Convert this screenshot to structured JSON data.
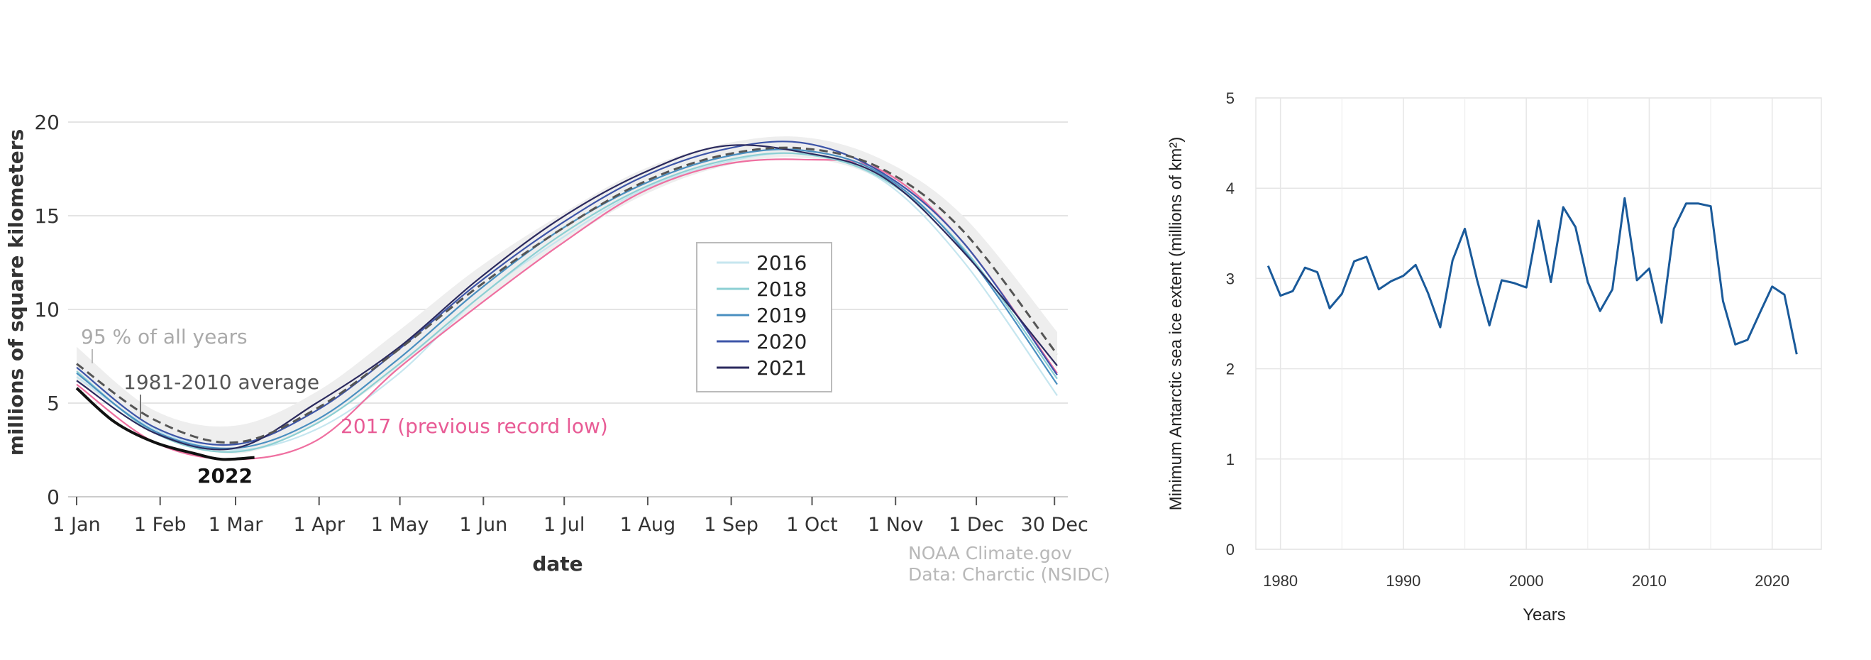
{
  "chart_data": [
    {
      "type": "line",
      "xlabel": "date",
      "ylabel": "millions of square kilometers",
      "ylim": [
        0,
        20
      ],
      "yticks": [
        0,
        5,
        10,
        15,
        20
      ],
      "xlim": [
        1,
        365
      ],
      "xticks": [
        {
          "day": 1,
          "label": "1 Jan"
        },
        {
          "day": 32,
          "label": "1 Feb"
        },
        {
          "day": 60,
          "label": "1 Mar"
        },
        {
          "day": 91,
          "label": "1 Apr"
        },
        {
          "day": 121,
          "label": "1 May"
        },
        {
          "day": 152,
          "label": "1 Jun"
        },
        {
          "day": 182,
          "label": "1 Jul"
        },
        {
          "day": 213,
          "label": "1 Aug"
        },
        {
          "day": 244,
          "label": "1 Sep"
        },
        {
          "day": 274,
          "label": "1 Oct"
        },
        {
          "day": 305,
          "label": "1 Nov"
        },
        {
          "day": 335,
          "label": "1 Dec"
        },
        {
          "day": 364,
          "label": "30 Dec"
        }
      ],
      "grid": true,
      "legend_position": "center-right",
      "band": {
        "label": "95 % of all years",
        "color": "#eeeeee",
        "x": [
          1,
          30,
          60,
          90,
          120,
          150,
          180,
          210,
          240,
          270,
          300,
          330,
          365
        ],
        "lower": [
          6.2,
          3.6,
          2.3,
          3.9,
          6.8,
          10.2,
          13.4,
          16.0,
          17.6,
          18.1,
          16.9,
          13.4,
          6.8
        ],
        "upper": [
          8.0,
          4.6,
          3.8,
          5.6,
          8.8,
          12.2,
          15.0,
          17.4,
          18.8,
          19.2,
          18.0,
          15.0,
          8.8
        ]
      },
      "average": {
        "label": "1981-2010 average",
        "color": "#555555",
        "x": [
          1,
          30,
          60,
          90,
          120,
          150,
          180,
          210,
          240,
          270,
          300,
          330,
          365
        ],
        "y": [
          7.1,
          4.1,
          2.9,
          4.7,
          7.8,
          11.2,
          14.2,
          16.7,
          18.2,
          18.6,
          17.5,
          14.2,
          7.6
        ]
      },
      "series": [
        {
          "name": "2016",
          "color": "#c6e6ef",
          "x": [
            1,
            30,
            60,
            90,
            120,
            150,
            180,
            210,
            240,
            270,
            300,
            330,
            365
          ],
          "y": [
            6.4,
            3.6,
            2.5,
            3.6,
            6.5,
            10.6,
            13.7,
            16.3,
            17.8,
            18.3,
            16.9,
            12.6,
            5.4
          ]
        },
        {
          "name": "2017 (previous record low)",
          "color": "#ef6fa0",
          "x": [
            1,
            30,
            60,
            90,
            120,
            150,
            180,
            210,
            240,
            270,
            300,
            330,
            365
          ],
          "y": [
            6.0,
            2.9,
            2.0,
            3.0,
            6.8,
            10.2,
            13.4,
            16.2,
            17.7,
            18.0,
            17.4,
            13.6,
            6.6
          ]
        },
        {
          "name": "2018",
          "color": "#8ccfd3",
          "x": [
            1,
            30,
            60,
            90,
            120,
            150,
            180,
            210,
            240,
            270,
            300,
            330,
            365
          ],
          "y": [
            6.7,
            3.4,
            2.4,
            3.9,
            7.0,
            10.6,
            13.9,
            16.4,
            17.9,
            18.3,
            17.0,
            13.3,
            6.3
          ]
        },
        {
          "name": "2019",
          "color": "#4a8fc0",
          "x": [
            1,
            30,
            60,
            90,
            120,
            150,
            180,
            210,
            240,
            270,
            300,
            330,
            365
          ],
          "y": [
            6.6,
            3.5,
            2.6,
            4.1,
            7.3,
            11.0,
            14.2,
            16.6,
            18.1,
            18.5,
            17.2,
            13.2,
            6.0
          ]
        },
        {
          "name": "2020",
          "color": "#3d55a8",
          "x": [
            1,
            30,
            60,
            90,
            120,
            150,
            180,
            210,
            240,
            270,
            300,
            330,
            365
          ],
          "y": [
            6.9,
            3.7,
            2.8,
            4.6,
            7.8,
            11.4,
            14.5,
            17.0,
            18.5,
            18.9,
            17.3,
            13.6,
            6.5
          ]
        },
        {
          "name": "2021",
          "color": "#2b2a5e",
          "x": [
            1,
            30,
            60,
            90,
            120,
            150,
            180,
            210,
            240,
            270,
            300,
            330,
            365
          ],
          "y": [
            6.2,
            3.4,
            2.6,
            5.0,
            7.9,
            11.6,
            14.8,
            17.2,
            18.7,
            18.4,
            17.1,
            13.1,
            7.0
          ]
        },
        {
          "name": "2022",
          "color": "#111111",
          "x": [
            1,
            15,
            30,
            45,
            55,
            67
          ],
          "y": [
            5.8,
            4.0,
            2.9,
            2.3,
            2.0,
            2.1
          ]
        }
      ],
      "legend": [
        "2016",
        "2018",
        "2019",
        "2020",
        "2021"
      ],
      "annotations": {
        "band_label": "95 % of all years",
        "average_label": "1981-2010 average",
        "record_label": "2017 (previous record low)",
        "current_label": "2022"
      },
      "credit": [
        "NOAA Climate.gov",
        "Data: Charctic (NSIDC)"
      ]
    },
    {
      "type": "line",
      "xlabel": "Years",
      "ylabel": "Minimum Antarctic sea ice extent (millions of km²)",
      "ylim": [
        0,
        5
      ],
      "yticks": [
        0,
        1,
        2,
        3,
        4,
        5
      ],
      "xlim": [
        1978,
        2024
      ],
      "xticks": [
        1980,
        1990,
        2000,
        2010,
        2020
      ],
      "grid": true,
      "series": [
        {
          "color": "#1a5a9a",
          "x": [
            1979,
            1980,
            1981,
            1982,
            1983,
            1984,
            1985,
            1986,
            1987,
            1988,
            1989,
            1990,
            1991,
            1992,
            1993,
            1994,
            1995,
            1996,
            1997,
            1998,
            1999,
            2000,
            2001,
            2002,
            2003,
            2004,
            2005,
            2006,
            2007,
            2008,
            2009,
            2010,
            2011,
            2012,
            2013,
            2014,
            2015,
            2016,
            2017,
            2018,
            2019,
            2020,
            2021,
            2022
          ],
          "y": [
            3.14,
            2.81,
            2.86,
            3.12,
            3.07,
            2.67,
            2.83,
            3.19,
            3.24,
            2.88,
            2.97,
            3.03,
            3.15,
            2.84,
            2.46,
            3.2,
            3.55,
            2.98,
            2.48,
            2.98,
            2.95,
            2.9,
            3.64,
            2.96,
            3.79,
            3.57,
            2.96,
            2.64,
            2.88,
            3.89,
            2.98,
            3.11,
            2.51,
            3.55,
            3.83,
            3.83,
            3.8,
            2.75,
            2.27,
            2.32,
            2.62,
            2.91,
            2.82,
            2.16
          ]
        }
      ]
    }
  ]
}
